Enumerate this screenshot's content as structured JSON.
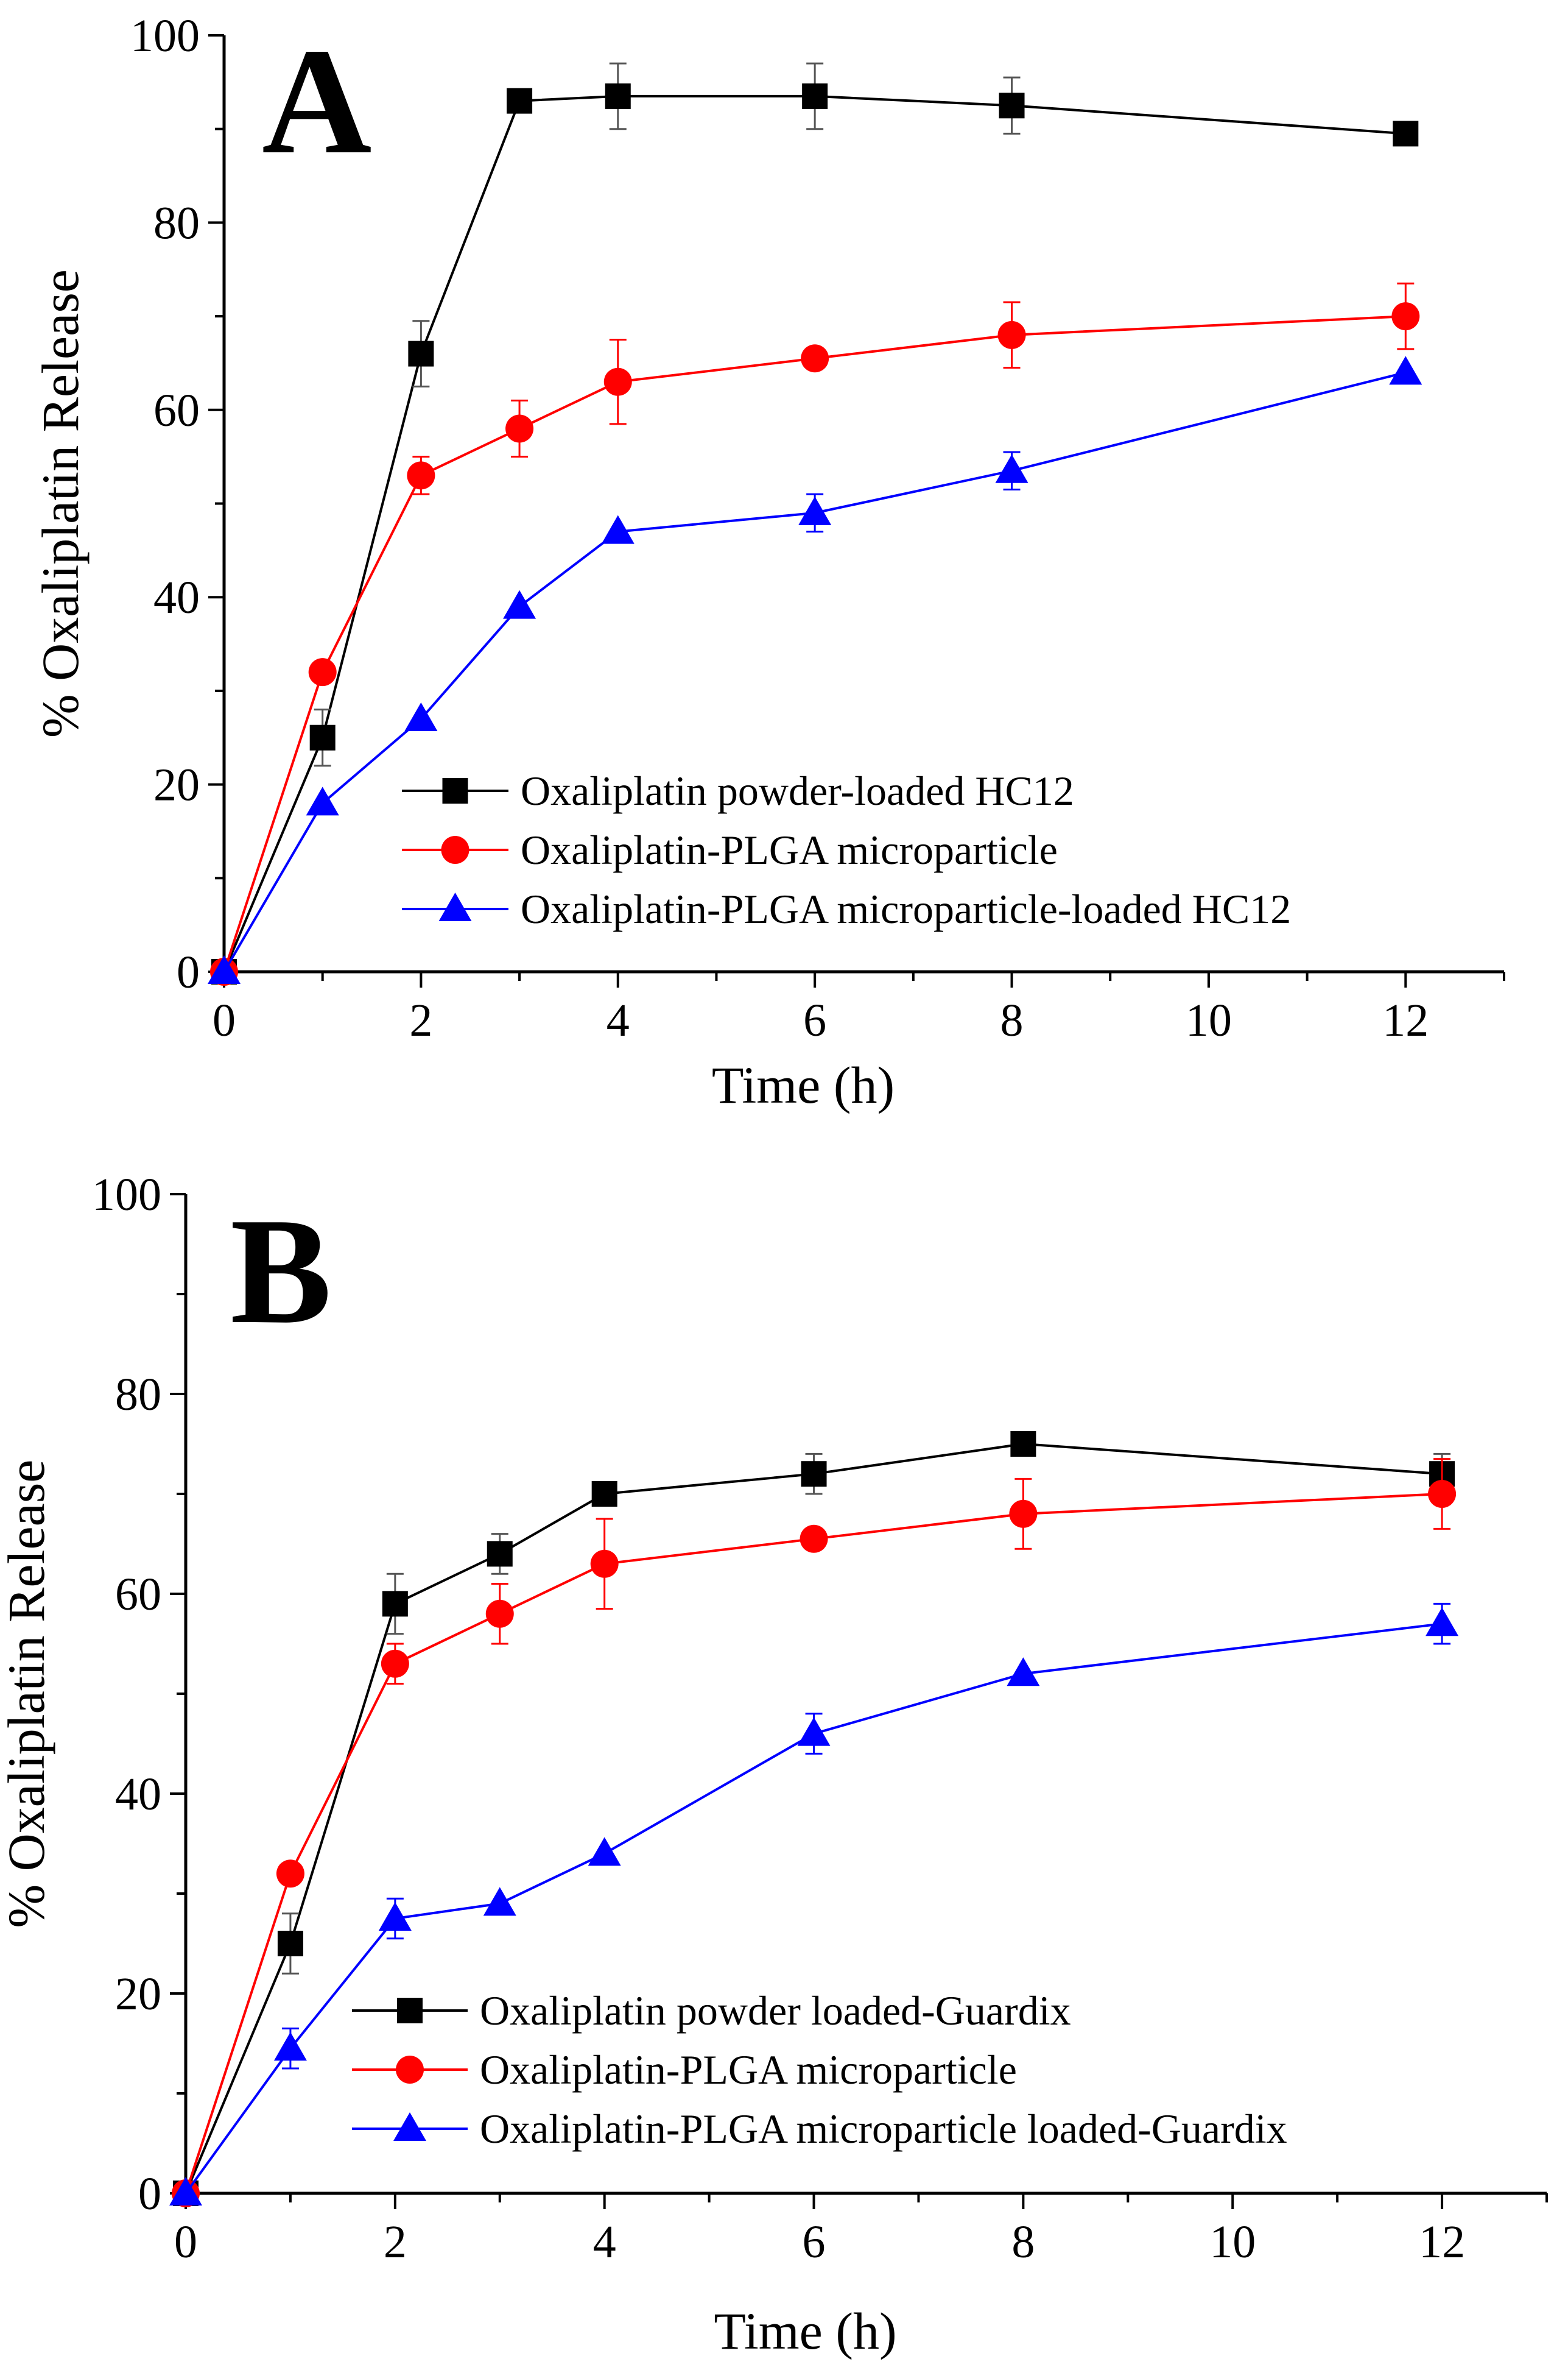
{
  "chart_data": [
    {
      "type": "line",
      "panel_label": "A",
      "xlabel": "Time (h)",
      "ylabel": "% Oxaliplatin Release",
      "xlim": [
        0,
        13
      ],
      "ylim": [
        0,
        100
      ],
      "xticks": [
        0,
        2,
        4,
        6,
        8,
        10,
        12
      ],
      "yticks": [
        0,
        20,
        40,
        60,
        80,
        100
      ],
      "legend_position": "bottom-center",
      "series": [
        {
          "name": "Oxaliplatin powder-loaded HC12",
          "color": "#000000",
          "marker": "square",
          "x": [
            0,
            1,
            2,
            3,
            4,
            6,
            8,
            12
          ],
          "y": [
            0,
            25,
            66,
            93,
            93.5,
            93.5,
            92.5,
            89.5
          ],
          "err": [
            0,
            3,
            3.5,
            0,
            3.5,
            3.5,
            3,
            0
          ]
        },
        {
          "name": "Oxaliplatin-PLGA microparticle",
          "color": "#ff0000",
          "marker": "circle",
          "x": [
            0,
            1,
            2,
            3,
            4,
            6,
            8,
            12
          ],
          "y": [
            0,
            32,
            53,
            58,
            63,
            65.5,
            68,
            70
          ],
          "err": [
            0,
            0,
            2,
            3,
            4.5,
            0,
            3.5,
            3.5
          ]
        },
        {
          "name": "Oxaliplatin-PLGA microparticle-loaded HC12",
          "color": "#0000ff",
          "marker": "triangle",
          "x": [
            0,
            1,
            2,
            3,
            4,
            6,
            8,
            12
          ],
          "y": [
            0,
            18,
            27,
            39,
            47,
            49,
            53.5,
            64
          ],
          "err": [
            0,
            0,
            0,
            0,
            0,
            2,
            2,
            0
          ]
        }
      ]
    },
    {
      "type": "line",
      "panel_label": "B",
      "xlabel": "Time (h)",
      "ylabel": "% Oxaliplatin Release",
      "xlim": [
        0,
        13
      ],
      "ylim": [
        0,
        100
      ],
      "xticks": [
        0,
        2,
        4,
        6,
        8,
        10,
        12
      ],
      "yticks": [
        0,
        20,
        40,
        60,
        80,
        100
      ],
      "legend_position": "bottom-center",
      "series": [
        {
          "name": "Oxaliplatin powder loaded-Guardix",
          "color": "#000000",
          "marker": "square",
          "x": [
            0,
            1,
            2,
            3,
            4,
            6,
            8,
            12
          ],
          "y": [
            0,
            25,
            59,
            64,
            70,
            72,
            75,
            72
          ],
          "err": [
            0,
            3,
            3,
            2,
            0,
            2,
            0,
            2
          ]
        },
        {
          "name": "Oxaliplatin-PLGA microparticle",
          "color": "#ff0000",
          "marker": "circle",
          "x": [
            0,
            1,
            2,
            3,
            4,
            6,
            8,
            12
          ],
          "y": [
            0,
            32,
            53,
            58,
            63,
            65.5,
            68,
            70
          ],
          "err": [
            0,
            0,
            2,
            3,
            4.5,
            0,
            3.5,
            3.5
          ]
        },
        {
          "name": "Oxaliplatin-PLGA microparticle loaded-Guardix",
          "color": "#0000ff",
          "marker": "triangle",
          "x": [
            0,
            1,
            2,
            3,
            4,
            6,
            8,
            12
          ],
          "y": [
            0,
            14.5,
            27.5,
            29,
            34,
            46,
            52,
            57
          ],
          "err": [
            0,
            2,
            2,
            0,
            0,
            2,
            0,
            2
          ]
        }
      ]
    }
  ]
}
